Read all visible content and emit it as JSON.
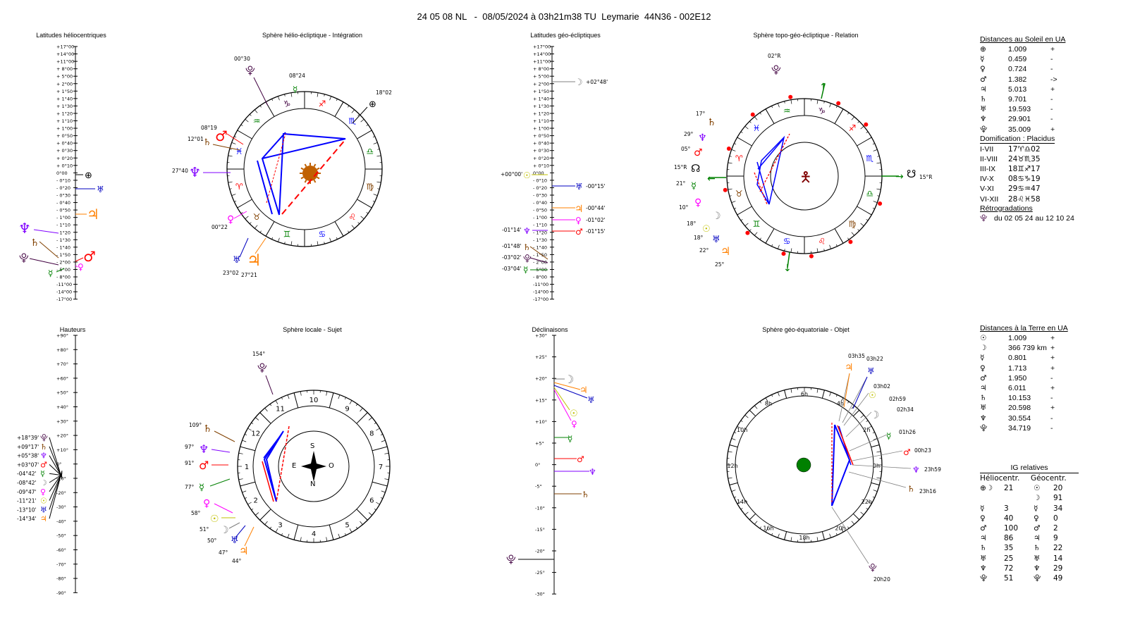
{
  "title": "24 05 08 NL   -  08/05/2024 à 03h21m38 TU  Leymarie  44N36 - 002E12",
  "panels": {
    "lat_helio": "Latitudes héliocentriques",
    "sphere_helio": "Sphère hélio-écliptique - Intégration",
    "lat_geo": "Latitudes géo-écliptiques",
    "sphere_topo": "Sphère topo-géo-écliptique - Relation",
    "heights": "Hauteurs",
    "sphere_local": "Sphère locale - Sujet",
    "declinations": "Déclinaisons",
    "sphere_equat": "Sphère géo-équatoriale - Objet"
  },
  "scales": {
    "lat_ticks": [
      "+17°00",
      "+14°00",
      "+11°00",
      "+ 8°00",
      "+ 5°00",
      "+ 2°00",
      "+ 1°50",
      "+ 1°40",
      "+ 1°30",
      "+ 1°20",
      "+ 1°10",
      "+ 1°00",
      "+ 0°50",
      "+ 0°40",
      "+ 0°30",
      "+ 0°20",
      "+ 0°10",
      "0°00",
      "- 0°10",
      "- 0°20",
      "- 0°30",
      "- 0°40",
      "- 0°50",
      "- 1°00",
      "- 1°10",
      "- 1°20",
      "- 1°30",
      "- 1°40",
      "- 1°50",
      "- 2°00",
      "- 5°00",
      "- 8°00",
      "-11°00",
      "-14°00",
      "-17°00"
    ],
    "height_ticks": [
      "+90°",
      "+80°",
      "+70°",
      "+60°",
      "+50°",
      "+40°",
      "+30°",
      "+20°",
      "+10°",
      "0°",
      "-10°",
      "-20°",
      "-30°",
      "-40°",
      "-50°",
      "-60°",
      "-70°",
      "-80°",
      "-90°"
    ],
    "decl_ticks": [
      "+30°",
      "+25°",
      "+20°",
      "+15°",
      "+10°",
      "+5°",
      "0°",
      "-5°",
      "-10°",
      "-15°",
      "-20°",
      "-25°",
      "-30°"
    ]
  },
  "helio_labels": {
    "pluto": "00°30",
    "mercury": "08°24",
    "earth": "18°02",
    "mars": "08°19",
    "saturn": "12°01",
    "neptune": "27°40",
    "venus": "00°22",
    "uranus": "23°02",
    "jupiter": "27°21"
  },
  "geo_lat_labels": {
    "moon": "+02°48'",
    "sun": "+00°00'",
    "uranus": "-00°15'",
    "jupiter": "-00°44'",
    "venus": "-01°02'",
    "mars": "-01°15'",
    "neptune": "-01°14'",
    "saturn": "-01°48'",
    "pluto": "-03°02'",
    "mercury": "-03°04'"
  },
  "topo_labels": {
    "pluto": "02°R",
    "saturn": "17°",
    "neptune": "29°",
    "mars": "05°",
    "node": "15°R",
    "mercury": "21°",
    "venus": "10°",
    "moon": "18°",
    "sun": "18°",
    "uranus": "22°",
    "jupiter": "25°",
    "node_right": "15°R"
  },
  "height_labels": [
    "+18°39'",
    "+09°17'",
    "+05°38'",
    "+03°07'",
    "-04°42'",
    "-08°42'",
    "-09°47'",
    "-11°21'",
    "-13°10'",
    "-14°34'"
  ],
  "local_labels": {
    "pluto": "154°",
    "saturn": "109°",
    "neptune": "97°",
    "mars": "91°",
    "mercury": "77°",
    "venus": "58°",
    "sun": "51°",
    "moon": "50°",
    "uranus": "47°",
    "jupiter": "44°"
  },
  "compass": {
    "s": "S",
    "n": "N",
    "e": "E",
    "o": "O"
  },
  "house_numbers": [
    "10",
    "9",
    "8",
    "7",
    "6",
    "5",
    "4",
    "3",
    "2",
    "1",
    "12",
    "11"
  ],
  "equat_hours": [
    "6h",
    "4h",
    "2h",
    "0h",
    "22h",
    "20h",
    "18h",
    "16h",
    "14h",
    "12h",
    "10h",
    "8h"
  ],
  "equat_labels": {
    "jupiter": "03h35",
    "uranus": "03h22",
    "sun": "03h02",
    "moon_a": "02h59",
    "moon_b": "02h34",
    "mercury": "01h26",
    "mars": "00h23",
    "neptune": "23h59",
    "saturn": "23h16",
    "pluto": "20h20"
  },
  "dist_sun": {
    "header": "Distances au Soleil en UA",
    "rows": [
      {
        "sym": "⊕",
        "val": "1.009",
        "flag": "+",
        "color": "#000"
      },
      {
        "sym": "☿",
        "val": "0.459",
        "flag": "-",
        "color": "#000"
      },
      {
        "sym": "♀",
        "val": "0.724",
        "flag": "-",
        "color": "#000"
      },
      {
        "sym": "♂",
        "val": "1.382",
        "flag": "->",
        "color": "#000"
      },
      {
        "sym": "♃",
        "val": "5.013",
        "flag": "+",
        "color": "#000"
      },
      {
        "sym": "♄",
        "val": "9.701",
        "flag": "-",
        "color": "#000"
      },
      {
        "sym": "♅",
        "val": "19.593",
        "flag": "-",
        "color": "#000"
      },
      {
        "sym": "♆",
        "val": "29.901",
        "flag": "-",
        "color": "#000"
      },
      {
        "sym": "⯓",
        "val": "35.009",
        "flag": "+",
        "color": "#000"
      }
    ]
  },
  "domification": {
    "header": "Domification : Placidus",
    "rows": [
      {
        "k": "I-VII",
        "v": "17♈♎02"
      },
      {
        "k": "II-VIII",
        "v": "24♉♏35"
      },
      {
        "k": "III-IX",
        "v": "18♊♐17"
      },
      {
        "k": "IV-X",
        "v": "08♋♑19"
      },
      {
        "k": "V-XI",
        "v": "29♋♒47"
      },
      {
        "k": "VI-XII",
        "v": "28♌♓58"
      }
    ]
  },
  "retro": {
    "header": "Rétrogradations",
    "row": "du 02 05 24 au 12 10 24"
  },
  "dist_earth": {
    "header": "Distances à la Terre en UA",
    "rows": [
      {
        "sym": "☉",
        "val": "1.009",
        "flag": "+"
      },
      {
        "sym": "☽",
        "val": "366 739 km",
        "flag": "+"
      },
      {
        "sym": "☿",
        "val": "0.801",
        "flag": "+"
      },
      {
        "sym": "♀",
        "val": "1.713",
        "flag": "+"
      },
      {
        "sym": "♂",
        "val": "1.950",
        "flag": "-"
      },
      {
        "sym": "♃",
        "val": "6.011",
        "flag": "+"
      },
      {
        "sym": "♄",
        "val": "10.153",
        "flag": "-"
      },
      {
        "sym": "♅",
        "val": "20.598",
        "flag": "+"
      },
      {
        "sym": "♆",
        "val": "30.554",
        "flag": "-"
      },
      {
        "sym": "⯓",
        "val": "34.719",
        "flag": "-"
      }
    ]
  },
  "ig": {
    "header": "IG relatives",
    "col1": "Héliocentr.",
    "col2": "Géocentr.",
    "rows": [
      {
        "s1": "⊕☽",
        "v1": "21",
        "s2": "☉",
        "v2": "20"
      },
      {
        "s1": "",
        "v1": "",
        "s2": "☽",
        "v2": "91"
      },
      {
        "s1": "☿",
        "v1": "3",
        "s2": "☿",
        "v2": "34"
      },
      {
        "s1": "♀",
        "v1": "40",
        "s2": "♀",
        "v2": "0"
      },
      {
        "s1": "♂",
        "v1": "100",
        "s2": "♂",
        "v2": "2"
      },
      {
        "s1": "♃",
        "v1": "86",
        "s2": "♃",
        "v2": "9"
      },
      {
        "s1": "♄",
        "v1": "35",
        "s2": "♄",
        "v2": "22"
      },
      {
        "s1": "♅",
        "v1": "25",
        "s2": "♅",
        "v2": "14"
      },
      {
        "s1": "♆",
        "v1": "72",
        "s2": "♆",
        "v2": "29"
      },
      {
        "s1": "⯓",
        "v1": "51",
        "s2": "⯓",
        "v2": "49"
      }
    ]
  },
  "colors": {
    "sun": "#c0c000",
    "moon": "#808080",
    "mercury": "#008000",
    "venus": "#ff00ff",
    "mars": "#ff0000",
    "jupiter": "#ff8000",
    "saturn": "#804000",
    "uranus": "#0000c0",
    "neptune": "#8000ff",
    "pluto": "#400040",
    "aspect": "#0000ff",
    "dash": "#ff0000"
  }
}
